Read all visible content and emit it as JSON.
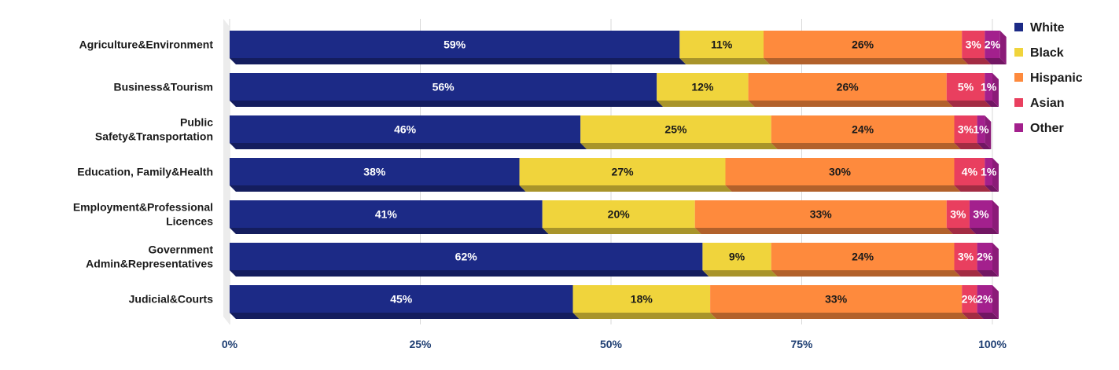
{
  "chart_data": {
    "type": "bar",
    "orientation": "horizontal",
    "stacked": "percent",
    "categories": [
      "Agriculture&Environment",
      "Business&Tourism",
      "Public Safety&Transportation",
      "Education, Family&Health",
      "Employment&Professional Licences",
      "Government Admin&Representatives",
      "Judicial&Courts"
    ],
    "series": [
      {
        "name": "White",
        "color": "#1c2a86",
        "values": [
          59,
          56,
          46,
          38,
          41,
          62,
          45
        ],
        "labels": [
          "59%",
          "56%",
          "46%",
          "38%",
          "41%",
          "62%",
          "45%"
        ]
      },
      {
        "name": "Black",
        "color": "#f0d43c",
        "values": [
          11,
          12,
          25,
          27,
          20,
          9,
          18
        ],
        "labels": [
          "11%",
          "12%",
          "25%",
          "27%",
          "20%",
          "9%",
          "18%"
        ]
      },
      {
        "name": "Hispanic",
        "color": "#fe8a3d",
        "values": [
          26,
          26,
          24,
          30,
          33,
          24,
          33
        ],
        "labels": [
          "26%",
          "26%",
          "24%",
          "30%",
          "33%",
          "24%",
          "33%"
        ]
      },
      {
        "name": "Asian",
        "color": "#e93f5f",
        "values": [
          3,
          5,
          3,
          4,
          3,
          3,
          2
        ],
        "labels": [
          "3%",
          "5%",
          "3%",
          "4%",
          "3%",
          "3%",
          "2%"
        ]
      },
      {
        "name": "Other",
        "color": "#a3208d",
        "values": [
          2,
          1,
          1,
          1,
          3,
          2,
          2
        ],
        "labels": [
          "2%",
          "1%",
          "1%",
          "1%",
          "3%",
          "2%",
          "2%"
        ]
      }
    ],
    "x_ticks": [
      "0%",
      "25%",
      "50%",
      "75%",
      "100%"
    ],
    "xlim": [
      0,
      100
    ],
    "legend_position": "right",
    "grid": "vertical",
    "style": "3d"
  }
}
